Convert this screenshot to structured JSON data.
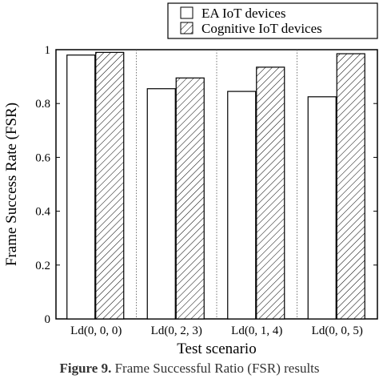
{
  "chart_data": {
    "type": "bar",
    "categories": [
      "Ld(0, 0, 0)",
      "Ld(0, 2, 3)",
      "Ld(0, 1, 4)",
      "Ld(0, 0, 5)"
    ],
    "series": [
      {
        "name": "EA IoT devices",
        "values": [
          0.98,
          0.855,
          0.845,
          0.825
        ],
        "pattern": "none"
      },
      {
        "name": "Cognitive IoT devices",
        "values": [
          0.99,
          0.895,
          0.935,
          0.985
        ],
        "pattern": "hatch"
      }
    ],
    "xlabel": "Test scenario",
    "ylabel": "Frame Success Rate (FSR)",
    "ylim": [
      0,
      1
    ],
    "yticks": [
      0,
      0.2,
      0.4,
      0.6,
      0.8,
      1
    ],
    "ytick_labels": [
      "0",
      "0.2",
      "0.4",
      "0.6",
      "0.8",
      "1"
    ],
    "grid": "dotted vertical separators between scenarios",
    "legend_position": "top-right"
  },
  "caption": {
    "label": "Figure 9.",
    "text": "Frame Successful Ratio (FSR) results"
  }
}
